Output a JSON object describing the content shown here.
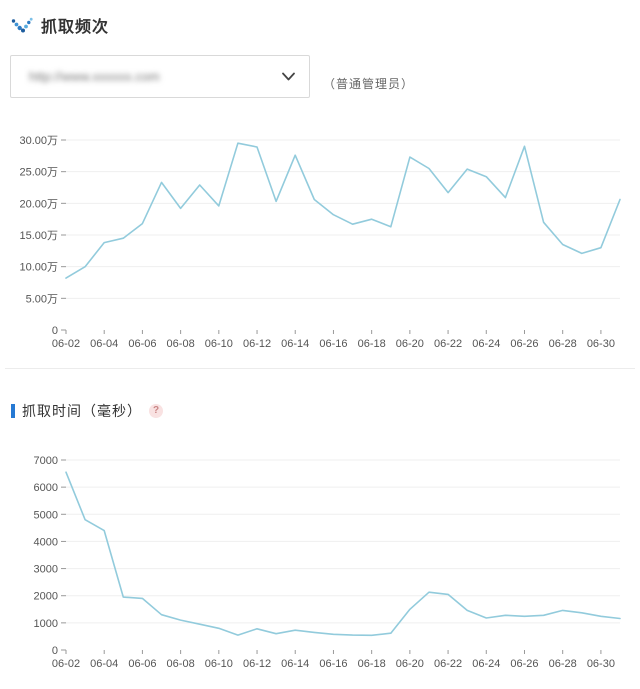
{
  "header": {
    "title": "抓取频次"
  },
  "site_selector": {
    "value": "http://www.xxxxxx.com",
    "role_label": "（普通管理员）"
  },
  "section2": {
    "title": "抓取时间（毫秒）",
    "help_glyph": "?"
  },
  "icons": {
    "logo": "dotted-v-icon",
    "dropdown": "chevron-down-icon",
    "help": "question-mark-icon"
  },
  "colors": {
    "line": "#92cbdc",
    "grid": "#efefef",
    "tick": "#999999",
    "axis_label": "#555555",
    "accent_blue": "#2679d3",
    "help_pink_bg": "#f9e2e2",
    "help_pink_fg": "#c98585"
  },
  "chart_data": [
    {
      "type": "line",
      "title": "抓取频次",
      "unit": "万",
      "x": [
        "06-02",
        "06-03",
        "06-04",
        "06-05",
        "06-06",
        "06-07",
        "06-08",
        "06-09",
        "06-10",
        "06-11",
        "06-12",
        "06-13",
        "06-14",
        "06-15",
        "06-16",
        "06-17",
        "06-18",
        "06-19",
        "06-20",
        "06-21",
        "06-22",
        "06-23",
        "06-24",
        "06-25",
        "06-26",
        "06-27",
        "06-28",
        "06-29",
        "06-30",
        "07-01"
      ],
      "x_tick_labels": [
        "06-02",
        "06-04",
        "06-06",
        "06-08",
        "06-10",
        "06-12",
        "06-14",
        "06-16",
        "06-18",
        "06-20",
        "06-22",
        "06-24",
        "06-26",
        "06-28",
        "06-30"
      ],
      "values": [
        8.2,
        10.0,
        13.8,
        14.5,
        16.8,
        23.3,
        19.2,
        22.9,
        19.6,
        29.5,
        28.9,
        20.3,
        27.6,
        20.6,
        18.2,
        16.7,
        17.5,
        16.3,
        27.3,
        25.5,
        21.7,
        25.4,
        24.2,
        20.9,
        29.0,
        17.0,
        13.5,
        12.1,
        13.0,
        20.6
      ],
      "ylim": [
        0,
        30
      ],
      "y_tick_labels": [
        "0",
        "5.00万",
        "10.00万",
        "15.00万",
        "20.00万",
        "25.00万",
        "30.00万"
      ],
      "grid": true,
      "legend": "none",
      "line_color": "#92cbdc"
    },
    {
      "type": "line",
      "title": "抓取时间（毫秒）",
      "unit": "毫秒",
      "x": [
        "06-02",
        "06-03",
        "06-04",
        "06-05",
        "06-06",
        "06-07",
        "06-08",
        "06-09",
        "06-10",
        "06-11",
        "06-12",
        "06-13",
        "06-14",
        "06-15",
        "06-16",
        "06-17",
        "06-18",
        "06-19",
        "06-20",
        "06-21",
        "06-22",
        "06-23",
        "06-24",
        "06-25",
        "06-26",
        "06-27",
        "06-28",
        "06-29",
        "06-30",
        "07-01"
      ],
      "x_tick_labels": [
        "06-02",
        "06-04",
        "06-06",
        "06-08",
        "06-10",
        "06-12",
        "06-14",
        "06-16",
        "06-18",
        "06-20",
        "06-22",
        "06-24",
        "06-26",
        "06-28",
        "06-30"
      ],
      "values": [
        6550,
        4800,
        4400,
        1950,
        1900,
        1300,
        1100,
        950,
        800,
        550,
        780,
        600,
        730,
        650,
        580,
        550,
        540,
        620,
        1500,
        2130,
        2050,
        1460,
        1180,
        1280,
        1240,
        1280,
        1460,
        1370,
        1240,
        1160
      ],
      "ylim": [
        0,
        7000
      ],
      "y_tick_labels": [
        "0",
        "1000",
        "2000",
        "3000",
        "4000",
        "5000",
        "6000",
        "7000"
      ],
      "grid": true,
      "legend": "none",
      "line_color": "#92cbdc"
    }
  ]
}
